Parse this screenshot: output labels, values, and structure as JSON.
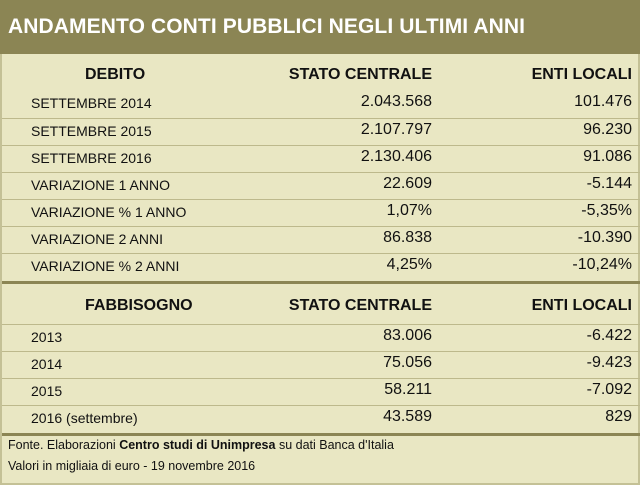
{
  "title": "ANDAMENTO CONTI PUBBLICI NEGLI ULTIMI ANNI",
  "debito": {
    "header": {
      "label": "DEBITO",
      "col1": "STATO CENTRALE",
      "col2": "ENTI LOCALI"
    },
    "rows": [
      {
        "label": "SETTEMBRE 2014",
        "stato": "2.043.568",
        "enti": "101.476"
      },
      {
        "label": "SETTEMBRE 2015",
        "stato": "2.107.797",
        "enti": "96.230"
      },
      {
        "label": "SETTEMBRE 2016",
        "stato": "2.130.406",
        "enti": "91.086"
      },
      {
        "label": "VARIAZIONE 1 ANNO",
        "stato": "22.609",
        "enti": "-5.144"
      },
      {
        "label": "VARIAZIONE % 1 ANNO",
        "stato": "1,07%",
        "enti": "-5,35%"
      },
      {
        "label": "VARIAZIONE 2 ANNI",
        "stato": "86.838",
        "enti": "-10.390"
      },
      {
        "label": "VARIAZIONE % 2 ANNI",
        "stato": "4,25%",
        "enti": "-10,24%"
      }
    ]
  },
  "fabbisogno": {
    "header": {
      "label": "FABBISOGNO",
      "col1": "STATO CENTRALE",
      "col2": "ENTI LOCALI"
    },
    "rows": [
      {
        "label": "2013",
        "stato": "83.006",
        "enti": "-6.422"
      },
      {
        "label": "2014",
        "stato": "75.056",
        "enti": "-9.423"
      },
      {
        "label": "2015",
        "stato": "58.211",
        "enti": "-7.092"
      },
      {
        "label": "2016 (settembre)",
        "stato": "43.589",
        "enti": "829"
      }
    ]
  },
  "footer": {
    "source_prefix": "Fonte. Elaborazioni ",
    "source_bold": "Centro studi di Unimpresa",
    "source_suffix": " su dati Banca d'Italia",
    "units": "Valori in migliaia di euro - 19 novembre 2016"
  },
  "colors": {
    "title_bg": "#8b8554",
    "panel_bg": "#e9e7c3",
    "rule": "#bdb98c"
  }
}
